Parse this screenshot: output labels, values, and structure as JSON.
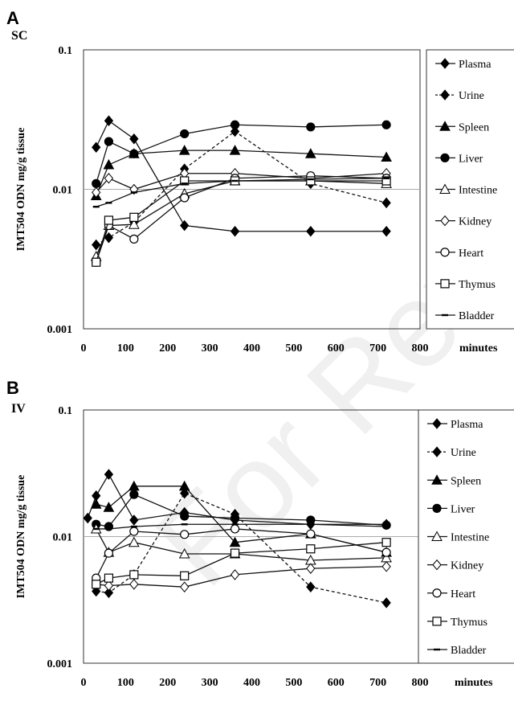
{
  "watermark": {
    "text": "For Review Not Intended or Re"
  },
  "chart_data": [
    {
      "type": "line",
      "panel_label": "A",
      "route": "SC",
      "ylabel": "IMT504 ODN mg/g tissue",
      "xlabel": "minutes",
      "yscale": "log",
      "ylim": [
        0.001,
        0.1
      ],
      "xlim": [
        0,
        800
      ],
      "xticks": [
        0,
        100,
        200,
        300,
        400,
        500,
        600,
        700,
        800
      ],
      "yticks": [
        0.001,
        0.01,
        0.1
      ],
      "ytick_labels": [
        "0.001",
        "0.01",
        "0.1"
      ],
      "legend_position": "right",
      "series": [
        {
          "name": "Plasma",
          "marker": "diamond-filled",
          "dash": false,
          "x": [
            30,
            60,
            120,
            240,
            360,
            540,
            720
          ],
          "y": [
            0.02,
            0.031,
            0.023,
            0.0055,
            0.005,
            0.005,
            0.005
          ]
        },
        {
          "name": "Urine",
          "marker": "diamond-filled",
          "dash": true,
          "x": [
            30,
            60,
            120,
            240,
            360,
            540,
            720
          ],
          "y": [
            0.004,
            0.0045,
            0.0058,
            0.014,
            0.026,
            0.011,
            0.008
          ]
        },
        {
          "name": "Spleen",
          "marker": "triangle-filled",
          "dash": false,
          "x": [
            30,
            60,
            120,
            240,
            360,
            540,
            720
          ],
          "y": [
            0.009,
            0.015,
            0.018,
            0.019,
            0.019,
            0.018,
            0.017
          ]
        },
        {
          "name": "Liver",
          "marker": "circle-filled",
          "dash": false,
          "x": [
            30,
            60,
            120,
            240,
            360,
            540,
            720
          ],
          "y": [
            0.011,
            0.022,
            0.018,
            0.025,
            0.029,
            0.028,
            0.029
          ]
        },
        {
          "name": "Intestine",
          "marker": "triangle-open",
          "dash": false,
          "x": [
            30,
            60,
            120,
            240,
            360,
            540,
            720
          ],
          "y": [
            0.0033,
            0.0055,
            0.0056,
            0.0093,
            0.0115,
            0.0115,
            0.011
          ]
        },
        {
          "name": "Kidney",
          "marker": "diamond-open",
          "dash": false,
          "x": [
            30,
            60,
            120,
            240,
            360,
            540,
            720
          ],
          "y": [
            0.0095,
            0.012,
            0.01,
            0.013,
            0.013,
            0.012,
            0.013
          ]
        },
        {
          "name": "Heart",
          "marker": "circle-open",
          "dash": false,
          "x": [
            30,
            60,
            120,
            240,
            360,
            540,
            720
          ],
          "y": [
            0.003,
            0.0055,
            0.0044,
            0.0087,
            0.012,
            0.0125,
            0.012
          ]
        },
        {
          "name": "Thymus",
          "marker": "square-open",
          "dash": false,
          "x": [
            30,
            60,
            120,
            240,
            360,
            540,
            720
          ],
          "y": [
            0.003,
            0.006,
            0.0063,
            0.0115,
            0.0115,
            0.0115,
            0.0115
          ]
        },
        {
          "name": "Bladder",
          "marker": "dash",
          "dash": false,
          "x": [
            30,
            60,
            120,
            240,
            360,
            540,
            720
          ],
          "y": [
            0.0075,
            0.008,
            0.0095,
            0.011,
            0.0115,
            0.0118,
            0.012
          ]
        }
      ]
    },
    {
      "type": "line",
      "panel_label": "B",
      "route": "IV",
      "ylabel": "IMT504 ODN mg/g tissue",
      "xlabel": "minutes",
      "yscale": "log",
      "ylim": [
        0.001,
        0.1
      ],
      "xlim": [
        0,
        800
      ],
      "xticks": [
        0,
        100,
        200,
        300,
        400,
        500,
        600,
        700,
        800
      ],
      "yticks": [
        0.001,
        0.01,
        0.1
      ],
      "ytick_labels": [
        "0.001",
        "0.01",
        "0.1"
      ],
      "legend_position": "right",
      "series": [
        {
          "name": "Plasma",
          "marker": "diamond-filled",
          "dash": false,
          "x": [
            10,
            30,
            60,
            120,
            240,
            360,
            540,
            720
          ],
          "y": [
            0.014,
            0.021,
            0.031,
            0.0135,
            0.0155,
            0.0135,
            0.0125,
            0.0125
          ]
        },
        {
          "name": "Urine",
          "marker": "diamond-filled",
          "dash": true,
          "x": [
            30,
            60,
            120,
            240,
            360,
            540,
            720
          ],
          "y": [
            0.0037,
            0.0036,
            0.005,
            0.022,
            0.015,
            0.004,
            0.003
          ]
        },
        {
          "name": "Spleen",
          "marker": "triangle-filled",
          "dash": false,
          "x": [
            30,
            60,
            120,
            240,
            360,
            540,
            720
          ],
          "y": [
            0.018,
            0.017,
            0.025,
            0.025,
            0.009,
            0.0105,
            0.0075
          ]
        },
        {
          "name": "Liver",
          "marker": "circle-filled",
          "dash": false,
          "x": [
            30,
            60,
            120,
            240,
            360,
            540,
            720
          ],
          "y": [
            0.0125,
            0.012,
            0.0215,
            0.0145,
            0.014,
            0.0135,
            0.0123
          ]
        },
        {
          "name": "Intestine",
          "marker": "triangle-open",
          "dash": false,
          "x": [
            30,
            60,
            120,
            240,
            360,
            540,
            720
          ],
          "y": [
            0.0115,
            0.0075,
            0.009,
            0.0073,
            0.0073,
            0.0065,
            0.0068
          ]
        },
        {
          "name": "Kidney",
          "marker": "diamond-open",
          "dash": false,
          "x": [
            30,
            60,
            120,
            240,
            360,
            540,
            720
          ],
          "y": [
            0.0042,
            0.0041,
            0.0042,
            0.004,
            0.005,
            0.0056,
            0.0058
          ]
        },
        {
          "name": "Heart",
          "marker": "circle-open",
          "dash": false,
          "x": [
            30,
            60,
            120,
            240,
            360,
            540,
            720
          ],
          "y": [
            0.0047,
            0.0074,
            0.011,
            0.0104,
            0.0115,
            0.0105,
            0.0075
          ]
        },
        {
          "name": "Thymus",
          "marker": "square-open",
          "dash": false,
          "x": [
            30,
            60,
            120,
            240,
            360,
            540,
            720
          ],
          "y": [
            0.0042,
            0.0047,
            0.005,
            0.0049,
            0.0074,
            0.008,
            0.009
          ]
        },
        {
          "name": "Bladder",
          "marker": "dash",
          "dash": false,
          "x": [
            30,
            60,
            120,
            240,
            360,
            540,
            720
          ],
          "y": [
            0.0115,
            0.0115,
            0.012,
            0.0125,
            0.0125,
            0.0125,
            0.012
          ]
        }
      ]
    }
  ]
}
